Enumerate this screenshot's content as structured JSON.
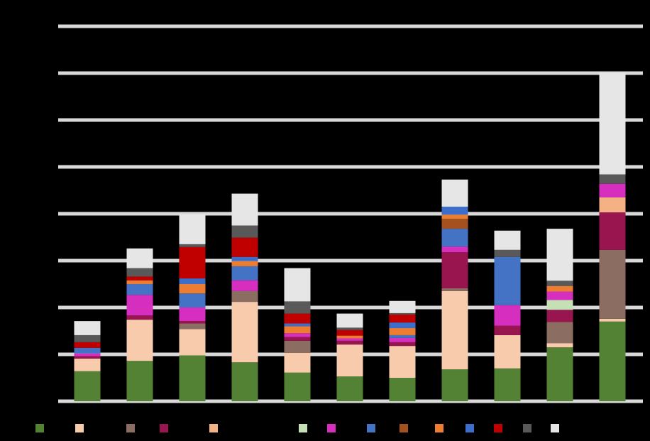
{
  "chart_data": {
    "type": "stacked_bar",
    "categories": [
      null,
      null,
      null,
      null,
      null,
      null,
      null,
      null,
      null,
      null,
      null
    ],
    "ylim": [
      0,
      8
    ],
    "yticks": [
      0,
      1,
      2,
      3,
      4,
      5,
      6,
      7,
      8
    ],
    "grid": true,
    "series": [
      {
        "color": "#548235",
        "values": [
          0.64,
          0.86,
          0.98,
          0.83,
          0.61,
          0.53,
          0.5,
          0.68,
          0.7,
          1.15,
          1.7
        ]
      },
      {
        "color": "#f8cbad",
        "values": [
          0.27,
          0.88,
          0.56,
          1.29,
          0.42,
          0.68,
          0.68,
          1.67,
          0.71,
          0.09,
          0.06
        ]
      },
      {
        "color": "#8c6d62",
        "values": [
          0,
          0,
          0.12,
          0.23,
          0.26,
          0,
          0,
          0.06,
          0,
          0.45,
          1.47
        ]
      },
      {
        "color": "#99154f",
        "values": [
          0.05,
          0.09,
          0.05,
          0,
          0.08,
          0.08,
          0.08,
          0.77,
          0.2,
          0.26,
          0.8
        ]
      },
      {
        "color": "#f4b183",
        "values": [
          0,
          0,
          0,
          0,
          0,
          0,
          0,
          0,
          0,
          0,
          0.32
        ]
      },
      {
        "color": "#c5e0b4",
        "values": [
          0,
          0,
          0,
          0,
          0,
          0,
          0,
          0,
          0,
          0.21,
          0
        ]
      },
      {
        "color": "#d62ebf",
        "values": [
          0.06,
          0.44,
          0.29,
          0.23,
          0.08,
          0.05,
          0.09,
          0.12,
          0.44,
          0.18,
          0.29
        ]
      },
      {
        "color": "#4472c4",
        "values": [
          0.12,
          0.23,
          0.3,
          0.3,
          0,
          0,
          0.06,
          0.38,
          1.03,
          0,
          0
        ]
      },
      {
        "color": "#a5511f",
        "values": [
          0,
          0,
          0,
          0,
          0,
          0,
          0,
          0.21,
          0,
          0,
          0
        ]
      },
      {
        "color": "#ed7d31",
        "values": [
          0,
          0.08,
          0.2,
          0.11,
          0.15,
          0.06,
          0.15,
          0.09,
          0,
          0.12,
          0
        ]
      },
      {
        "color": "#3d6ec9",
        "values": [
          0,
          0,
          0.12,
          0.09,
          0.06,
          0,
          0.12,
          0.17,
          0,
          0,
          0
        ]
      },
      {
        "color": "#c00000",
        "values": [
          0.12,
          0.08,
          0.67,
          0.41,
          0.21,
          0.12,
          0.17,
          0,
          0,
          0,
          0
        ]
      },
      {
        "color": "#595959",
        "values": [
          0.15,
          0.18,
          0.06,
          0.26,
          0.26,
          0.05,
          0.03,
          0,
          0.15,
          0.11,
          0.2
        ]
      },
      {
        "color": "#e7e6e6",
        "values": [
          0.3,
          0.42,
          0.64,
          0.68,
          0.71,
          0.3,
          0.26,
          0.58,
          0.41,
          1.11,
          2.17
        ]
      }
    ]
  }
}
